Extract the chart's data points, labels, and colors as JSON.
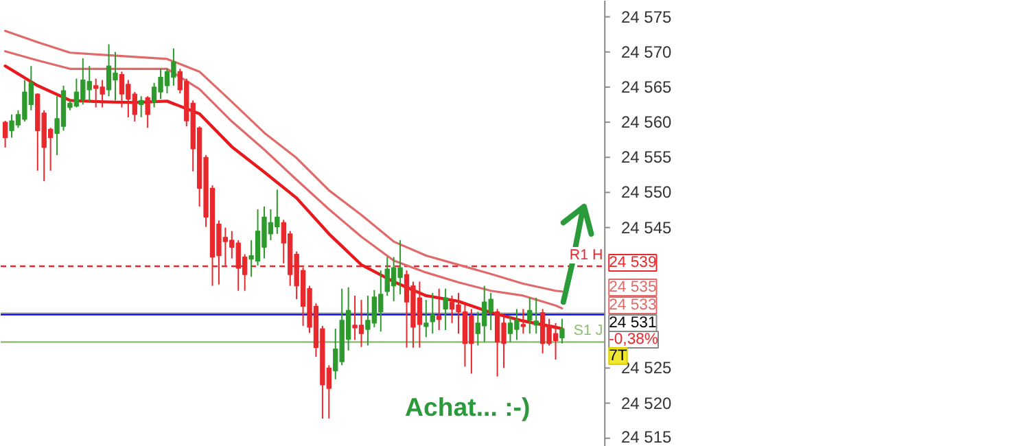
{
  "chart_data": {
    "type": "candlestick",
    "categories": [
      null,
      null,
      null,
      null,
      null,
      null,
      null,
      null,
      null,
      null,
      null,
      null,
      null,
      null,
      null,
      null,
      null,
      null,
      null,
      null,
      null,
      null,
      null,
      null,
      null,
      null,
      null,
      null,
      null,
      null,
      null,
      null,
      null,
      null,
      null,
      null,
      null,
      null,
      null,
      null,
      null,
      null,
      null,
      null,
      null,
      null,
      null,
      null,
      null,
      null,
      null,
      null,
      null,
      null,
      null,
      null,
      null,
      null,
      null,
      null,
      null,
      null,
      null,
      null,
      null,
      null,
      null,
      null,
      null,
      null,
      null,
      null,
      null,
      null,
      null,
      null,
      null,
      null,
      null,
      null,
      null,
      null,
      null,
      null,
      null,
      null,
      null
    ],
    "ohlc": [
      [
        24560.0,
        24560.2,
        24556.4,
        24557.8
      ],
      [
        24558.8,
        24561.1,
        24557.8,
        24560.2
      ],
      [
        24559.6,
        24561.7,
        24559.2,
        24561.1
      ],
      [
        24560.4,
        24566.0,
        24560.1,
        24564.3
      ],
      [
        24562.5,
        24568.0,
        24561.7,
        24565.6
      ],
      [
        24564.0,
        24564.1,
        24553.1,
        24558.8
      ],
      [
        24561.3,
        24561.7,
        24551.6,
        24556.4
      ],
      [
        24559.0,
        24559.2,
        24553.1,
        24557.8
      ],
      [
        24558.4,
        24563.7,
        24555.3,
        24560.5
      ],
      [
        24559.4,
        24565.2,
        24558.8,
        24564.5
      ],
      [
        24562.1,
        24563.1,
        24561.7,
        24562.7
      ],
      [
        24562.3,
        24566.2,
        24562.1,
        24564.3
      ],
      [
        24563.3,
        24569.1,
        24562.5,
        24566.0
      ],
      [
        24564.6,
        24568.0,
        24562.9,
        24565.8
      ],
      [
        24565.2,
        24566.2,
        24562.1,
        24564.8
      ],
      [
        24565.0,
        24566.0,
        24562.1,
        24564.0
      ],
      [
        24564.6,
        24571.1,
        24563.7,
        24568.0
      ],
      [
        24566.0,
        24570.0,
        24563.1,
        24567.0
      ],
      [
        24566.8,
        24567.2,
        24562.1,
        24564.0
      ],
      [
        24565.4,
        24566.0,
        24560.7,
        24563.3
      ],
      [
        24564.0,
        24564.3,
        24560.1,
        24561.1
      ],
      [
        24562.5,
        24563.7,
        24560.7,
        24563.1
      ],
      [
        24563.5,
        24563.7,
        24559.2,
        24561.1
      ],
      [
        24562.9,
        24565.6,
        24562.1,
        24565.0
      ],
      [
        24564.3,
        24567.6,
        24563.3,
        24566.4
      ],
      [
        24565.2,
        24567.6,
        24564.1,
        24567.2
      ],
      [
        24566.4,
        24570.5,
        24565.2,
        24568.6
      ],
      [
        24567.2,
        24567.6,
        24564.1,
        24564.6
      ],
      [
        24565.8,
        24566.2,
        24559.4,
        24560.2
      ],
      [
        24562.7,
        24563.1,
        24553.0,
        24556.2
      ],
      [
        24559.2,
        24559.4,
        24548.0,
        24550.6
      ],
      [
        24555.0,
        24555.3,
        24545.1,
        24546.5
      ],
      [
        24550.6,
        24551.0,
        24536.7,
        24540.8
      ],
      [
        24545.5,
        24546.0,
        24536.9,
        24541.0
      ],
      [
        24543.6,
        24545.0,
        24539.6,
        24543.0
      ],
      [
        24543.2,
        24544.5,
        24540.6,
        24542.2
      ],
      [
        24542.8,
        24543.2,
        24536.0,
        24539.2
      ],
      [
        24540.8,
        24541.2,
        24536.0,
        24538.3
      ],
      [
        24540.5,
        24543.2,
        24538.0,
        24541.0
      ],
      [
        24540.2,
        24547.6,
        24539.6,
        24544.5
      ],
      [
        24542.2,
        24548.0,
        24540.6,
        24546.5
      ],
      [
        24544.1,
        24547.6,
        24543.2,
        24545.7
      ],
      [
        24545.1,
        24550.4,
        24544.1,
        24546.5
      ],
      [
        24545.7,
        24546.1,
        24539.9,
        24542.8
      ],
      [
        24544.1,
        24544.5,
        24536.7,
        24538.3
      ],
      [
        24541.2,
        24541.6,
        24534.8,
        24536.7
      ],
      [
        24538.9,
        24539.3,
        24531.0,
        24533.8
      ],
      [
        24536.3,
        24536.7,
        24530.0,
        24530.8
      ],
      [
        24533.8,
        24534.2,
        24526.6,
        24527.9
      ],
      [
        24530.6,
        24531.0,
        24517.8,
        24522.6
      ],
      [
        24525.0,
        24525.4,
        24517.8,
        24522.1
      ],
      [
        24524.6,
        24530.6,
        24523.4,
        24527.7
      ],
      [
        24525.9,
        24536.3,
        24525.4,
        24531.8
      ],
      [
        24529.1,
        24536.5,
        24527.5,
        24533.2
      ],
      [
        24531.1,
        24535.3,
        24529.0,
        24530.7
      ],
      [
        24531.1,
        24534.7,
        24528.0,
        24529.9
      ],
      [
        24530.5,
        24535.3,
        24528.2,
        24531.8
      ],
      [
        24531.4,
        24536.1,
        24530.8,
        24535.1
      ],
      [
        24533.0,
        24538.9,
        24530.2,
        24535.5
      ],
      [
        24535.9,
        24540.8,
        24535.3,
        24539.1
      ],
      [
        24536.7,
        24540.8,
        24534.5,
        24539.3
      ],
      [
        24537.9,
        24543.2,
        24535.5,
        24539.3
      ],
      [
        24538.3,
        24538.9,
        24527.9,
        24534.4
      ],
      [
        24536.7,
        24537.3,
        24527.9,
        24530.8
      ],
      [
        24535.0,
        24537.3,
        24527.9,
        24531.2
      ],
      [
        24530.9,
        24534.7,
        24529.4,
        24531.4
      ],
      [
        24531.6,
        24535.7,
        24529.9,
        24532.6
      ],
      [
        24532.4,
        24536.3,
        24530.4,
        24531.9
      ],
      [
        24533.4,
        24536.3,
        24530.4,
        24535.0
      ],
      [
        24534.4,
        24535.3,
        24531.4,
        24533.4
      ],
      [
        24534.0,
        24535.7,
        24529.9,
        24533.0
      ],
      [
        24533.0,
        24534.4,
        24525.2,
        24528.5
      ],
      [
        24532.4,
        24533.4,
        24524.2,
        24528.5
      ],
      [
        24529.9,
        24533.0,
        24528.2,
        24531.4
      ],
      [
        24531.0,
        24536.7,
        24528.7,
        24534.4
      ],
      [
        24533.0,
        24535.7,
        24530.4,
        24534.8
      ],
      [
        24533.0,
        24533.4,
        24523.8,
        24528.7
      ],
      [
        24531.4,
        24532.4,
        24525.0,
        24528.5
      ],
      [
        24529.9,
        24532.4,
        24528.7,
        24531.4
      ],
      [
        24530.5,
        24533.4,
        24529.0,
        24531.8
      ],
      [
        24531.2,
        24533.4,
        24529.9,
        24530.9
      ],
      [
        24531.8,
        24535.0,
        24529.9,
        24533.2
      ],
      [
        24531.1,
        24535.0,
        24529.9,
        24531.7
      ],
      [
        24532.9,
        24533.4,
        24527.1,
        24528.5
      ],
      [
        24531.1,
        24532.0,
        24528.2,
        24528.5
      ],
      [
        24529.9,
        24531.4,
        24526.2,
        24528.9
      ],
      [
        24529.3,
        24532.0,
        24528.5,
        24530.6
      ]
    ],
    "colors": [
      "#e8282c",
      "#2e9a2e",
      "#2e9a2e",
      "#2e9a2e",
      "#2e9a2e",
      "#e8282c",
      "#e8282c",
      "#e8282c",
      "#2e9a2e",
      "#2e9a2e",
      "#2e9a2e",
      "#2e9a2e",
      "#2e9a2e",
      "#2e9a2e",
      "#e8282c",
      "#e8282c",
      "#2e9a2e",
      "#2e9a2e",
      "#e8282c",
      "#e8282c",
      "#e8282c",
      "#2e9a2e",
      "#e8282c",
      "#2e9a2e",
      "#2e9a2e",
      "#2e9a2e",
      "#2e9a2e",
      "#e8282c",
      "#e8282c",
      "#e8282c",
      "#e8282c",
      "#e8282c",
      "#e8282c",
      "#e8282c",
      "#e8282c",
      "#e8282c",
      "#e8282c",
      "#e8282c",
      "#2e9a2e",
      "#2e9a2e",
      "#2e9a2e",
      "#2e9a2e",
      "#2e9a2e",
      "#e8282c",
      "#e8282c",
      "#e8282c",
      "#e8282c",
      "#e8282c",
      "#e8282c",
      "#e8282c",
      "#e8282c",
      "#2e9a2e",
      "#2e9a2e",
      "#2e9a2e",
      "#e8282c",
      "#e8282c",
      "#2e9a2e",
      "#2e9a2e",
      "#2e9a2e",
      "#2e9a2e",
      "#2e9a2e",
      "#2e9a2e",
      "#e8282c",
      "#e8282c",
      "#e8282c",
      "#2e9a2e",
      "#2e9a2e",
      "#e8282c",
      "#2e9a2e",
      "#e8282c",
      "#e8282c",
      "#e8282c",
      "#e8282c",
      "#2e9a2e",
      "#2e9a2e",
      "#2e9a2e",
      "#e8282c",
      "#e8282c",
      "#2e9a2e",
      "#2e9a2e",
      "#e8282c",
      "#2e9a2e",
      "#2e9a2e",
      "#e8282c",
      "#e8282c",
      "#e8282c",
      "#2e9a2e"
    ],
    "series": [
      {
        "type": "line",
        "color": "#e06a6a",
        "values": [
          24573.0,
          null,
          null,
          null,
          null,
          24571.4,
          null,
          null,
          null,
          null,
          24569.9,
          null,
          null,
          null,
          null,
          24569.6,
          null,
          null,
          null,
          null,
          24569.3,
          null,
          null,
          null,
          null,
          24569.0,
          null,
          null,
          null,
          null,
          24567.2,
          null,
          null,
          null,
          null,
          24562.9,
          null,
          null,
          null,
          null,
          24558.5,
          null,
          null,
          null,
          null,
          24554.9,
          null,
          null,
          null,
          null,
          24550.3,
          null,
          null,
          null,
          null,
          24546.8,
          null,
          null,
          null,
          null,
          24543.0,
          null,
          null,
          null,
          null,
          24541.0,
          null,
          null,
          null,
          null,
          24539.7,
          null,
          null,
          null,
          null,
          24538.4,
          null,
          null,
          null,
          null,
          24537.0,
          null,
          null,
          null,
          null,
          24536.0,
          24535.9
        ]
      },
      {
        "type": "line",
        "color": "#e06a6a",
        "values": [
          24570.1,
          null,
          null,
          null,
          null,
          24568.8,
          null,
          null,
          null,
          null,
          24567.6,
          null,
          null,
          null,
          null,
          24567.6,
          null,
          null,
          null,
          null,
          24567.6,
          null,
          null,
          null,
          null,
          24567.6,
          null,
          null,
          null,
          null,
          24564.7,
          null,
          null,
          null,
          null,
          24560.1,
          null,
          null,
          null,
          null,
          24556.1,
          null,
          null,
          null,
          null,
          24551.8,
          null,
          null,
          null,
          null,
          24547.6,
          null,
          null,
          null,
          null,
          24543.7,
          null,
          null,
          null,
          null,
          24540.3,
          null,
          null,
          null,
          null,
          24538.6,
          null,
          null,
          null,
          null,
          24537.2,
          null,
          null,
          null,
          null,
          24536.0,
          null,
          null,
          null,
          null,
          24535.3,
          null,
          null,
          null,
          null,
          24533.9,
          24533.5
        ]
      },
      {
        "type": "line",
        "color": "#e8181c",
        "values": [
          24568.0,
          null,
          null,
          null,
          null,
          24565.2,
          null,
          null,
          null,
          null,
          24563.1,
          null,
          null,
          null,
          null,
          24562.9,
          null,
          null,
          null,
          null,
          24562.8,
          null,
          null,
          null,
          null,
          24563.0,
          null,
          null,
          null,
          null,
          24561.2,
          null,
          null,
          null,
          null,
          24556.5,
          null,
          null,
          null,
          null,
          24552.9,
          null,
          null,
          null,
          null,
          24549.2,
          null,
          null,
          null,
          null,
          24544.1,
          null,
          null,
          null,
          null,
          24539.7,
          null,
          null,
          null,
          null,
          24537.3,
          null,
          null,
          null,
          null,
          24535.3,
          null,
          null,
          null,
          null,
          24534.5,
          null,
          null,
          null,
          null,
          24532.9,
          null,
          null,
          null,
          null,
          24531.7,
          null,
          null,
          null,
          null,
          24530.8,
          24530.6
        ]
      }
    ],
    "ylim": [
      24513.8,
      24577.3
    ],
    "yticks": [
      {
        "value": 24575,
        "label": "24 575"
      },
      {
        "value": 24570,
        "label": "24 570"
      },
      {
        "value": 24565,
        "label": "24 565"
      },
      {
        "value": 24560,
        "label": "24 560"
      },
      {
        "value": 24555,
        "label": "24 555"
      },
      {
        "value": 24550,
        "label": "24 550"
      },
      {
        "value": 24545,
        "label": "24 545"
      },
      {
        "value": 24525,
        "label": "24 525"
      },
      {
        "value": 24520,
        "label": "24 520"
      },
      {
        "value": 24515,
        "label": "24 515"
      }
    ],
    "tick_labels": "y",
    "grid": false,
    "ref_lines": [
      {
        "axis": "y",
        "value": 24532.8,
        "color": "#b0b0b0"
      },
      {
        "axis": "y",
        "value": 24532.6,
        "color": "#1010e0"
      },
      {
        "axis": "y",
        "value": 24539.5,
        "label": "R1 H",
        "color": "#e8282c",
        "line_style": "dashed"
      },
      {
        "axis": "y",
        "value": 24528.7,
        "label": "S1 J",
        "color": "#8cc070"
      }
    ],
    "annotations": [
      "Achat... :-)",
      "24 539",
      "24 535",
      "24 533",
      "24 531",
      "-0,38%",
      "7T"
    ]
  }
}
